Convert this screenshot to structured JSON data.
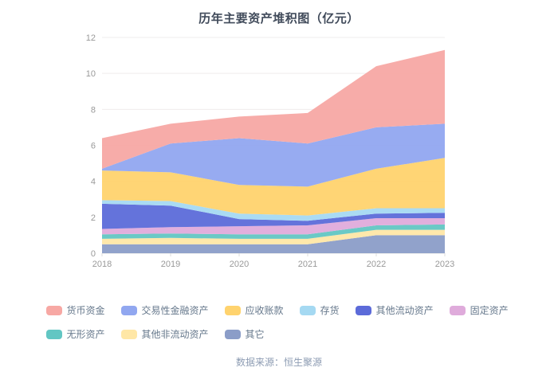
{
  "title": "历年主要资产堆积图（亿元）",
  "footer": {
    "source": "数据来源：恒生聚源"
  },
  "axis": {
    "label_color": "#999999",
    "grid_color": "#efecec",
    "axis_line_color": "#dcdcdc"
  },
  "chart_data": {
    "type": "area",
    "stacked": true,
    "title": "历年主要资产堆积图（亿元）",
    "xlabel": "",
    "ylabel": "",
    "categories": [
      "2018",
      "2019",
      "2020",
      "2021",
      "2022",
      "2023"
    ],
    "series": [
      {
        "name": "货币资金",
        "color": "#F7A8A4",
        "values": [
          1.7,
          1.1,
          1.2,
          1.7,
          3.4,
          4.1
        ]
      },
      {
        "name": "交易性金融资产",
        "color": "#91A7F0",
        "values": [
          0.1,
          1.6,
          2.6,
          2.4,
          2.3,
          1.9
        ]
      },
      {
        "name": "应收账款",
        "color": "#FFD36E",
        "values": [
          1.65,
          1.6,
          1.6,
          1.6,
          2.2,
          2.8
        ]
      },
      {
        "name": "存货",
        "color": "#A5D9F2",
        "values": [
          0.2,
          0.25,
          0.3,
          0.3,
          0.3,
          0.25
        ]
      },
      {
        "name": "其他流动资产",
        "color": "#5C6BD9",
        "values": [
          1.4,
          1.2,
          0.4,
          0.25,
          0.25,
          0.3
        ]
      },
      {
        "name": "固定资产",
        "color": "#DFABDB",
        "values": [
          0.3,
          0.35,
          0.45,
          0.5,
          0.4,
          0.35
        ]
      },
      {
        "name": "无形资产",
        "color": "#62C6C3",
        "values": [
          0.25,
          0.25,
          0.25,
          0.25,
          0.25,
          0.3
        ]
      },
      {
        "name": "其他非流动资产",
        "color": "#FFE7A6",
        "values": [
          0.3,
          0.35,
          0.3,
          0.3,
          0.3,
          0.3
        ]
      },
      {
        "name": "其它",
        "color": "#8B9DC8",
        "values": [
          0.5,
          0.5,
          0.5,
          0.5,
          1.0,
          1.0
        ]
      }
    ],
    "totals": [
      6.4,
      7.2,
      7.6,
      7.8,
      10.4,
      11.3
    ],
    "ylim": [
      0,
      12
    ],
    "yticks": [
      0,
      2,
      4,
      6,
      8,
      10,
      12
    ],
    "grid": true,
    "legend_position": "bottom",
    "stack_order": "reverse-of-series-list (legend first item drawn on top)"
  }
}
